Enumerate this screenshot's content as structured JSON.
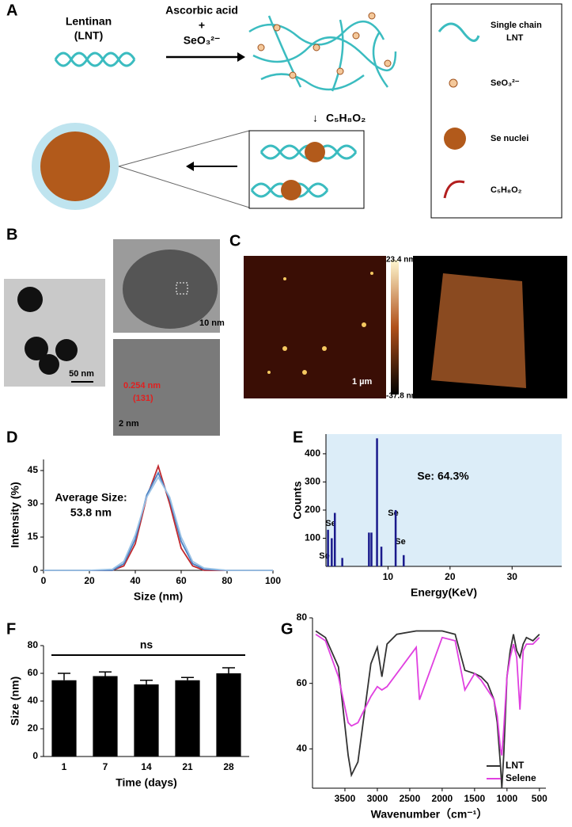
{
  "schematic": {
    "panel": "A",
    "lentinan": "Lentinan",
    "lnt": "(LNT)",
    "reagent1": "Ascorbic acid",
    "plus": "+",
    "reagent2": "SeO₃²⁻",
    "reagent3": "C₅H₈O₂",
    "legend": [
      "Single chain",
      "LNT",
      "SeO₃²⁻",
      "Se nuclei",
      "C₅H₈O₂"
    ]
  },
  "micrographs": {
    "panel_b": "B",
    "scale1": "50 nm",
    "scale2": "10 nm",
    "d_spacing": "0.254 nm",
    "plane": "(131)",
    "scale3": "2 nm",
    "panel_c": "C",
    "height_max": "23.4 nm",
    "height_min": "-37.8 nm",
    "scale4": "1 µm"
  },
  "chart_data": [
    {
      "type": "line",
      "panel": "D",
      "xlabel": "Size (nm)",
      "ylabel": "Intensity (%)",
      "annotations": [
        "Average Size:",
        "53.8 nm"
      ],
      "x": [
        0,
        10,
        20,
        30,
        35,
        40,
        45,
        50,
        55,
        60,
        65,
        70,
        80,
        90,
        100
      ],
      "series": [
        {
          "color": "#c0282d",
          "values": [
            0,
            0,
            0,
            0,
            2,
            12,
            33,
            47,
            30,
            10,
            2,
            0,
            0,
            0,
            0
          ]
        },
        {
          "color": "#4a7fc1",
          "values": [
            0,
            0,
            0,
            0,
            3,
            14,
            34,
            44,
            32,
            13,
            3,
            0.5,
            0,
            0,
            0
          ]
        },
        {
          "color": "#9cc3e6",
          "values": [
            0,
            0,
            0,
            0.5,
            4,
            16,
            33,
            42,
            33,
            15,
            4,
            1,
            0,
            0,
            0
          ]
        }
      ],
      "xlim": [
        0,
        100
      ],
      "xticks": [
        0,
        20,
        40,
        60,
        80,
        100
      ],
      "ylim": [
        0,
        50
      ],
      "yticks": [
        0,
        15,
        30,
        45
      ]
    },
    {
      "type": "bar",
      "panel": "E",
      "xlabel": "Energy(KeV)",
      "ylabel": "Counts",
      "annotations": [
        "Se: 64.3%",
        "Se",
        "Se",
        "Se",
        "Se"
      ],
      "color": "#1a1a8c",
      "background": "#dcedf8",
      "x": [
        0.3,
        0.9,
        1.4,
        2.6,
        6.9,
        7.3,
        8.2,
        8.9,
        11.2,
        12.5
      ],
      "values": [
        130,
        100,
        190,
        30,
        120,
        120,
        455,
        70,
        200,
        40
      ],
      "xlim": [
        0,
        38
      ],
      "xticks": [
        10,
        20,
        30
      ],
      "ylim": [
        0,
        470
      ],
      "yticks": [
        100,
        200,
        300,
        400
      ]
    },
    {
      "type": "bar",
      "panel": "F",
      "xlabel": "Time (days)",
      "ylabel": "Size (nm)",
      "annotations": [
        "ns"
      ],
      "color": "#000000",
      "categories": [
        "1",
        "7",
        "14",
        "21",
        "28"
      ],
      "values": [
        55,
        58,
        52,
        55,
        60
      ],
      "errors": [
        5,
        3,
        3,
        2,
        4
      ],
      "ylim": [
        0,
        80
      ],
      "yticks": [
        0,
        20,
        40,
        60,
        80
      ]
    },
    {
      "type": "line",
      "panel": "G",
      "xlabel": "Wavenumber（cm⁻¹）",
      "legend": "lower right",
      "x": [
        3950,
        3800,
        3600,
        3450,
        3400,
        3300,
        3100,
        3000,
        2930,
        2850,
        2700,
        2400,
        2350,
        2000,
        1800,
        1650,
        1500,
        1400,
        1300,
        1200,
        1150,
        1100,
        1080,
        1050,
        1000,
        950,
        900,
        850,
        800,
        750,
        700,
        600,
        500
      ],
      "series": [
        {
          "name": "LNT",
          "color": "#333333",
          "values": [
            76,
            74,
            65,
            38,
            32,
            36,
            66,
            71,
            62,
            72,
            75,
            76,
            76,
            76,
            75,
            64,
            63,
            62,
            60,
            55,
            48,
            35,
            28,
            38,
            62,
            70,
            75,
            70,
            68,
            72,
            74,
            73,
            75
          ]
        },
        {
          "name": "Selene",
          "color": "#e040e0",
          "values": [
            75,
            73,
            62,
            48,
            47,
            48,
            56,
            59,
            58,
            59,
            63,
            71,
            55,
            74,
            73,
            58,
            63,
            61,
            58,
            55,
            50,
            40,
            38,
            46,
            62,
            68,
            72,
            68,
            52,
            70,
            72,
            72,
            74
          ]
        }
      ],
      "xlim": [
        4000,
        400
      ],
      "xticks": [
        3500,
        3000,
        2500,
        2000,
        1500,
        1000,
        500
      ],
      "ylim": [
        28,
        80
      ],
      "yticks": [
        40,
        60,
        80
      ]
    }
  ]
}
